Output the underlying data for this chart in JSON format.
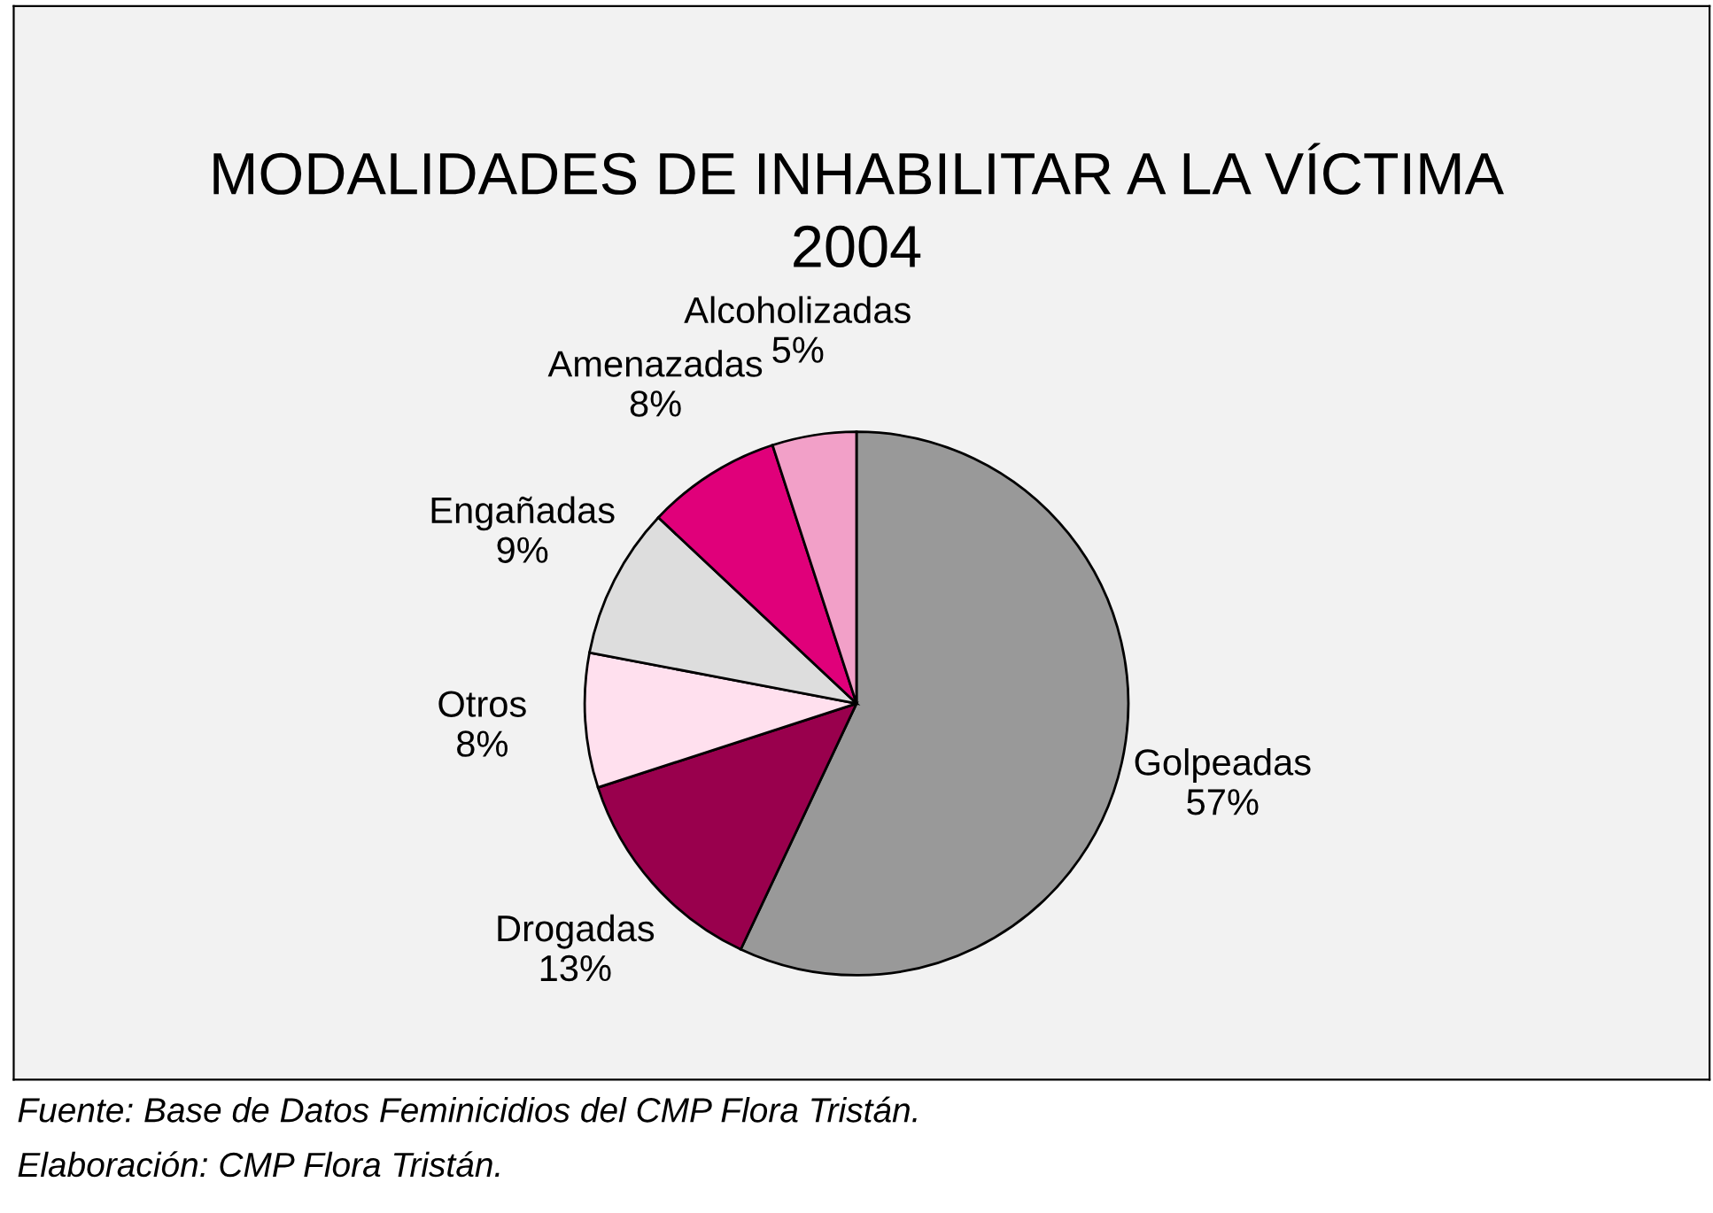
{
  "chart_data": {
    "type": "pie",
    "title": "MODALIDADES DE INHABILITAR A LA VÍCTIMA",
    "subtitle": "2004",
    "categories": [
      "Golpeadas",
      "Drogadas",
      "Otros",
      "Engañadas",
      "Amenazadas",
      "Alcoholizadas"
    ],
    "values": [
      57,
      13,
      8,
      9,
      8,
      5
    ],
    "value_labels": [
      "57%",
      "13%",
      "8%",
      "9%",
      "8%",
      "5%"
    ],
    "colors": [
      "#999999",
      "#99004d",
      "#ffe0ee",
      "#dddddd",
      "#e0007a",
      "#f2a0c8"
    ],
    "legend": false,
    "annotations": [
      "Fuente: Base de Datos Feminicidios del CMP Flora Tristán.",
      "Elaboración: CMP Flora Tristán."
    ]
  }
}
